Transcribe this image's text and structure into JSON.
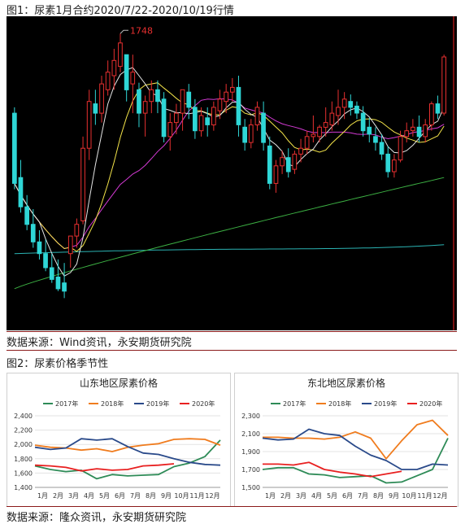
{
  "figure1": {
    "title": "图1：尿素1月合约2020/7/22-2020/10/19行情",
    "source": "数据来源：Wind资讯，永安期货研究院",
    "chart_data": {
      "type": "candlestick",
      "peak_label": "1748",
      "candles": [
        [
          1680,
          1685,
          1620,
          1615
        ],
        [
          1625,
          1640,
          1600,
          1595
        ],
        [
          1600,
          1610,
          1585,
          1580
        ],
        [
          1585,
          1598,
          1570,
          1565
        ],
        [
          1570,
          1580,
          1560,
          1555
        ],
        [
          1560,
          1572,
          1548,
          1545
        ],
        [
          1548,
          1560,
          1538,
          1535
        ],
        [
          1540,
          1555,
          1530,
          1528
        ],
        [
          1535,
          1552,
          1528,
          1522
        ],
        [
          1560,
          1570,
          1575,
          1548
        ],
        [
          1575,
          1590,
          1585,
          1565
        ],
        [
          1588,
          1660,
          1650,
          1585
        ],
        [
          1650,
          1700,
          1690,
          1640
        ],
        [
          1688,
          1700,
          1680,
          1670
        ],
        [
          1680,
          1712,
          1705,
          1672
        ],
        [
          1700,
          1725,
          1715,
          1695
        ],
        [
          1712,
          1735,
          1725,
          1700
        ],
        [
          1720,
          1748,
          1740,
          1715
        ],
        [
          1730,
          1730,
          1700,
          1690
        ],
        [
          1705,
          1730,
          1715,
          1680
        ],
        [
          1700,
          1706,
          1680,
          1668
        ],
        [
          1680,
          1695,
          1690,
          1660
        ],
        [
          1690,
          1708,
          1700,
          1680
        ],
        [
          1700,
          1708,
          1690,
          1680
        ],
        [
          1692,
          1698,
          1660,
          1655
        ],
        [
          1660,
          1680,
          1672,
          1648
        ],
        [
          1672,
          1688,
          1680,
          1662
        ],
        [
          1680,
          1690,
          1700,
          1665
        ],
        [
          1698,
          1705,
          1685,
          1675
        ],
        [
          1685,
          1692,
          1665,
          1658
        ],
        [
          1665,
          1685,
          1678,
          1660
        ],
        [
          1676,
          1685,
          1670,
          1660
        ],
        [
          1670,
          1690,
          1685,
          1665
        ],
        [
          1682,
          1700,
          1692,
          1675
        ],
        [
          1690,
          1705,
          1698,
          1680
        ],
        [
          1698,
          1710,
          1702,
          1690
        ],
        [
          1702,
          1712,
          1670,
          1660
        ],
        [
          1668,
          1675,
          1655,
          1648
        ],
        [
          1655,
          1675,
          1670,
          1650
        ],
        [
          1670,
          1690,
          1685,
          1665
        ],
        [
          1680,
          1690,
          1655,
          1648
        ],
        [
          1652,
          1660,
          1620,
          1615
        ],
        [
          1620,
          1640,
          1635,
          1612
        ],
        [
          1635,
          1648,
          1642,
          1628
        ],
        [
          1642,
          1650,
          1630,
          1625
        ],
        [
          1632,
          1648,
          1645,
          1628
        ],
        [
          1645,
          1658,
          1650,
          1638
        ],
        [
          1650,
          1665,
          1660,
          1645
        ],
        [
          1660,
          1678,
          1662,
          1655
        ],
        [
          1660,
          1670,
          1668,
          1655
        ],
        [
          1668,
          1685,
          1672,
          1660
        ],
        [
          1670,
          1690,
          1680,
          1665
        ],
        [
          1678,
          1700,
          1685,
          1670
        ],
        [
          1685,
          1698,
          1692,
          1675
        ],
        [
          1690,
          1696,
          1685,
          1678
        ],
        [
          1686,
          1690,
          1680,
          1675
        ],
        [
          1680,
          1686,
          1665,
          1660
        ],
        [
          1668,
          1676,
          1662,
          1655
        ],
        [
          1660,
          1668,
          1655,
          1648
        ],
        [
          1655,
          1662,
          1645,
          1640
        ],
        [
          1645,
          1652,
          1630,
          1625
        ],
        [
          1630,
          1645,
          1640,
          1625
        ],
        [
          1640,
          1665,
          1660,
          1638
        ],
        [
          1660,
          1672,
          1665,
          1655
        ],
        [
          1665,
          1675,
          1668,
          1660
        ],
        [
          1668,
          1678,
          1660,
          1655
        ],
        [
          1660,
          1675,
          1670,
          1655
        ],
        [
          1670,
          1690,
          1688,
          1665
        ],
        [
          1688,
          1695,
          1680,
          1675
        ],
        [
          1680,
          1730,
          1728,
          1678
        ]
      ],
      "ma5_color": "#e5e5e5",
      "ma10_color": "#f5e54a",
      "ma20_color": "#d43ad4",
      "ma60_color": "#3cb043",
      "ma120_color": "#2bb3b3"
    }
  },
  "figure2": {
    "title": "图2：尿素价格季节性",
    "source": "数据来源：隆众资讯，永安期货研究院",
    "left": {
      "title": "山东地区尿素价格",
      "chart_data": {
        "type": "line",
        "title": "山东地区尿素价格",
        "ylim": [
          1400,
          2400
        ],
        "yticks": [
          "1,400",
          "1,600",
          "1,800",
          "2,000",
          "2,200",
          "2,400"
        ],
        "months": [
          "1月",
          "2月",
          "3月",
          "4月",
          "5月",
          "6月",
          "7月",
          "8月",
          "9月",
          "10月",
          "11月",
          "12月"
        ],
        "series": [
          {
            "name": "2017年",
            "color": "#2e8b57",
            "values": [
              1700,
              1650,
              1620,
              1640,
              1520,
              1580,
              1560,
              1570,
              1580,
              1690,
              1740,
              1830,
              2060
            ]
          },
          {
            "name": "2018年",
            "color": "#f07c1e",
            "values": [
              1990,
              1960,
              1950,
              1920,
              1940,
              1900,
              1960,
              1990,
              2010,
              2070,
              2080,
              2070,
              1990
            ]
          },
          {
            "name": "2019年",
            "color": "#2a4a8a",
            "values": [
              1960,
              1930,
              1950,
              2080,
              2060,
              2080,
              1970,
              1880,
              1860,
              1800,
              1750,
              1720,
              1710
            ]
          },
          {
            "name": "2020年",
            "color": "#e82020",
            "values": [
              1710,
              1700,
              1680,
              1630,
              1660,
              1640,
              1650,
              1700,
              1710,
              1730,
              null,
              null,
              null
            ]
          }
        ]
      }
    },
    "right": {
      "title": "东北地区尿素价格",
      "chart_data": {
        "type": "line",
        "title": "东北地区尿素价格",
        "ylim": [
          1500,
          2300
        ],
        "yticks": [
          "1,500",
          "1,700",
          "1,900",
          "2,100",
          "2,300"
        ],
        "months": [
          "1月",
          "2月",
          "3月",
          "4月",
          "5月",
          "6月",
          "7月",
          "8月",
          "9月",
          "10月",
          "11月",
          "12月"
        ],
        "series": [
          {
            "name": "2017年",
            "color": "#2e8b57",
            "values": [
              1700,
              1720,
              1720,
              1650,
              1640,
              1610,
              1620,
              1630,
              1550,
              1560,
              1630,
              1700,
              2050
            ]
          },
          {
            "name": "2018年",
            "color": "#f07c1e",
            "values": [
              2060,
              2060,
              2050,
              2050,
              2040,
              2060,
              2120,
              2050,
              1820,
              2020,
              2200,
              2250,
              2080
            ]
          },
          {
            "name": "2019年",
            "color": "#2a4a8a",
            "values": [
              2050,
              2030,
              2040,
              2150,
              2100,
              2080,
              1960,
              1860,
              1800,
              1700,
              1700,
              1760,
              1750
            ]
          },
          {
            "name": "2020年",
            "color": "#e82020",
            "values": [
              1760,
              1760,
              1750,
              1780,
              1700,
              1670,
              1650,
              1620,
              1650,
              1680,
              null,
              null,
              null
            ]
          }
        ]
      }
    }
  }
}
